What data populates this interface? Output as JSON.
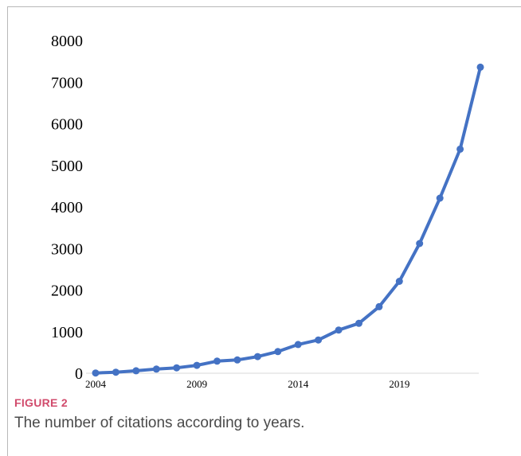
{
  "figure": {
    "label": "FIGURE 2",
    "caption": "The number of citations according to years."
  },
  "colors": {
    "series": "#4472c4",
    "axis": "#d9d9d9",
    "label": "#d14b6c"
  },
  "chart_data": {
    "type": "line",
    "title": "",
    "xlabel": "",
    "ylabel": "",
    "x": [
      2004,
      2005,
      2006,
      2007,
      2008,
      2009,
      2010,
      2011,
      2012,
      2013,
      2014,
      2015,
      2016,
      2017,
      2018,
      2019,
      2020,
      2021,
      2022,
      2023
    ],
    "series": [
      {
        "values": [
          5,
          25,
          60,
          100,
          130,
          190,
          290,
          320,
          400,
          520,
          690,
          800,
          1040,
          1200,
          1600,
          2210,
          3120,
          4210,
          5390,
          7360
        ]
      }
    ],
    "xtick_labels": [
      "2004",
      "2009",
      "2014",
      "2019"
    ],
    "xtick_values": [
      2004,
      2009,
      2014,
      2019
    ],
    "ytick_labels": [
      "0",
      "1000",
      "2000",
      "3000",
      "4000",
      "5000",
      "6000",
      "7000",
      "8000"
    ],
    "ytick_values": [
      0,
      1000,
      2000,
      3000,
      4000,
      5000,
      6000,
      7000,
      8000
    ],
    "ylim": [
      0,
      8000
    ],
    "xlim": [
      2004,
      2023
    ],
    "grid": false,
    "legend": "none"
  }
}
